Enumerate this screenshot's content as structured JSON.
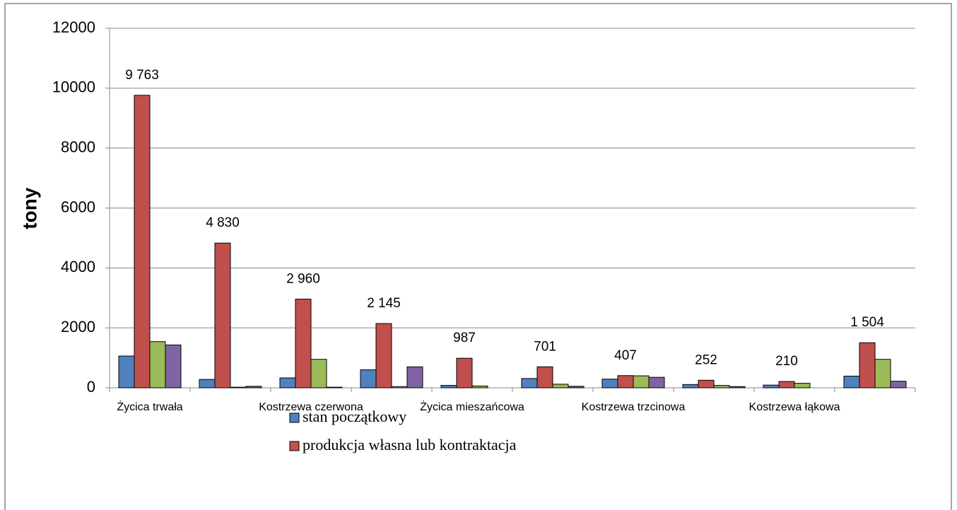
{
  "chart_data": {
    "type": "bar",
    "y_label": "tony",
    "categories": [
      "Życica trwała",
      null,
      "Kostrzewa czerwona",
      null,
      "Życica mieszańcowa",
      null,
      "Kostrzewa trzcinowa",
      null,
      "Kostrzewa łąkowa",
      null
    ],
    "series": [
      {
        "name": "stan początkowy",
        "color": "#4f81bd",
        "values": [
          1060,
          280,
          330,
          600,
          80,
          310,
          290,
          110,
          90,
          390
        ]
      },
      {
        "name": "produkcja własna lub kontraktacja",
        "color": "#c0504d",
        "values": [
          9763,
          4830,
          2960,
          2145,
          987,
          701,
          407,
          252,
          210,
          1504
        ],
        "value_labels": [
          "9 763",
          "4 830",
          "2 960",
          "2 145",
          "987",
          "701",
          "407",
          "252",
          "210",
          "1 504"
        ]
      },
      {
        "color": "#9bbb59",
        "values": [
          1540,
          20,
          950,
          40,
          60,
          120,
          400,
          80,
          150,
          950
        ]
      },
      {
        "color": "#8064a2",
        "values": [
          1430,
          50,
          20,
          700,
          0,
          50,
          350,
          40,
          0,
          220
        ]
      }
    ],
    "ylim": [
      0,
      12000
    ],
    "yticks": [
      0,
      2000,
      4000,
      6000,
      8000,
      10000,
      12000
    ],
    "grid": true
  }
}
